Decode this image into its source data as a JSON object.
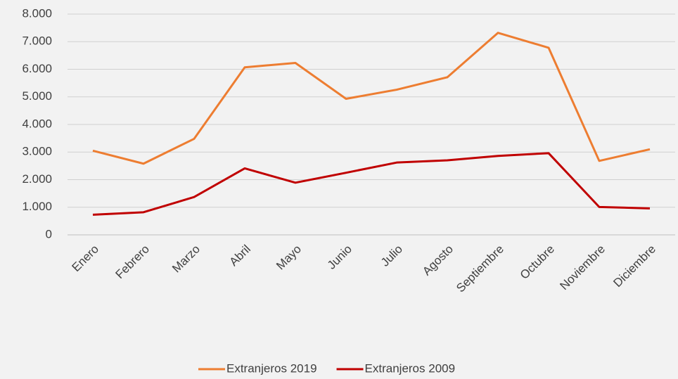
{
  "chart_data": {
    "type": "line",
    "categories": [
      "Enero",
      "Febrero",
      "Marzo",
      "Abril",
      "Mayo",
      "Junio",
      "Julio",
      "Agosto",
      "Septiembre",
      "Octubre",
      "Noviembre",
      "Diciembre"
    ],
    "series": [
      {
        "name": "Extranjeros 2019",
        "color": "#ed7d31",
        "values": [
          3050,
          2580,
          3480,
          6070,
          6230,
          4930,
          5260,
          5710,
          7320,
          6780,
          2680,
          3100
        ]
      },
      {
        "name": "Extranjeros 2009",
        "color": "#c00000",
        "values": [
          730,
          820,
          1370,
          2410,
          1890,
          2250,
          2620,
          2700,
          2860,
          2960,
          1010,
          960
        ]
      }
    ],
    "ylim": [
      0,
      8000
    ],
    "yticks": [
      0,
      {
        "value": 1000,
        "label": "1.000"
      },
      {
        "value": 2000,
        "label": "2.000"
      },
      {
        "value": 3000,
        "label": "3.000"
      },
      {
        "value": 4000,
        "label": "4.000"
      },
      {
        "value": 5000,
        "label": "5.000"
      },
      {
        "value": 6000,
        "label": "6.000"
      },
      {
        "value": 7000,
        "label": "7.000"
      },
      {
        "value": 8000,
        "label": "8.000"
      }
    ],
    "grid": true,
    "legend": "bottom"
  }
}
